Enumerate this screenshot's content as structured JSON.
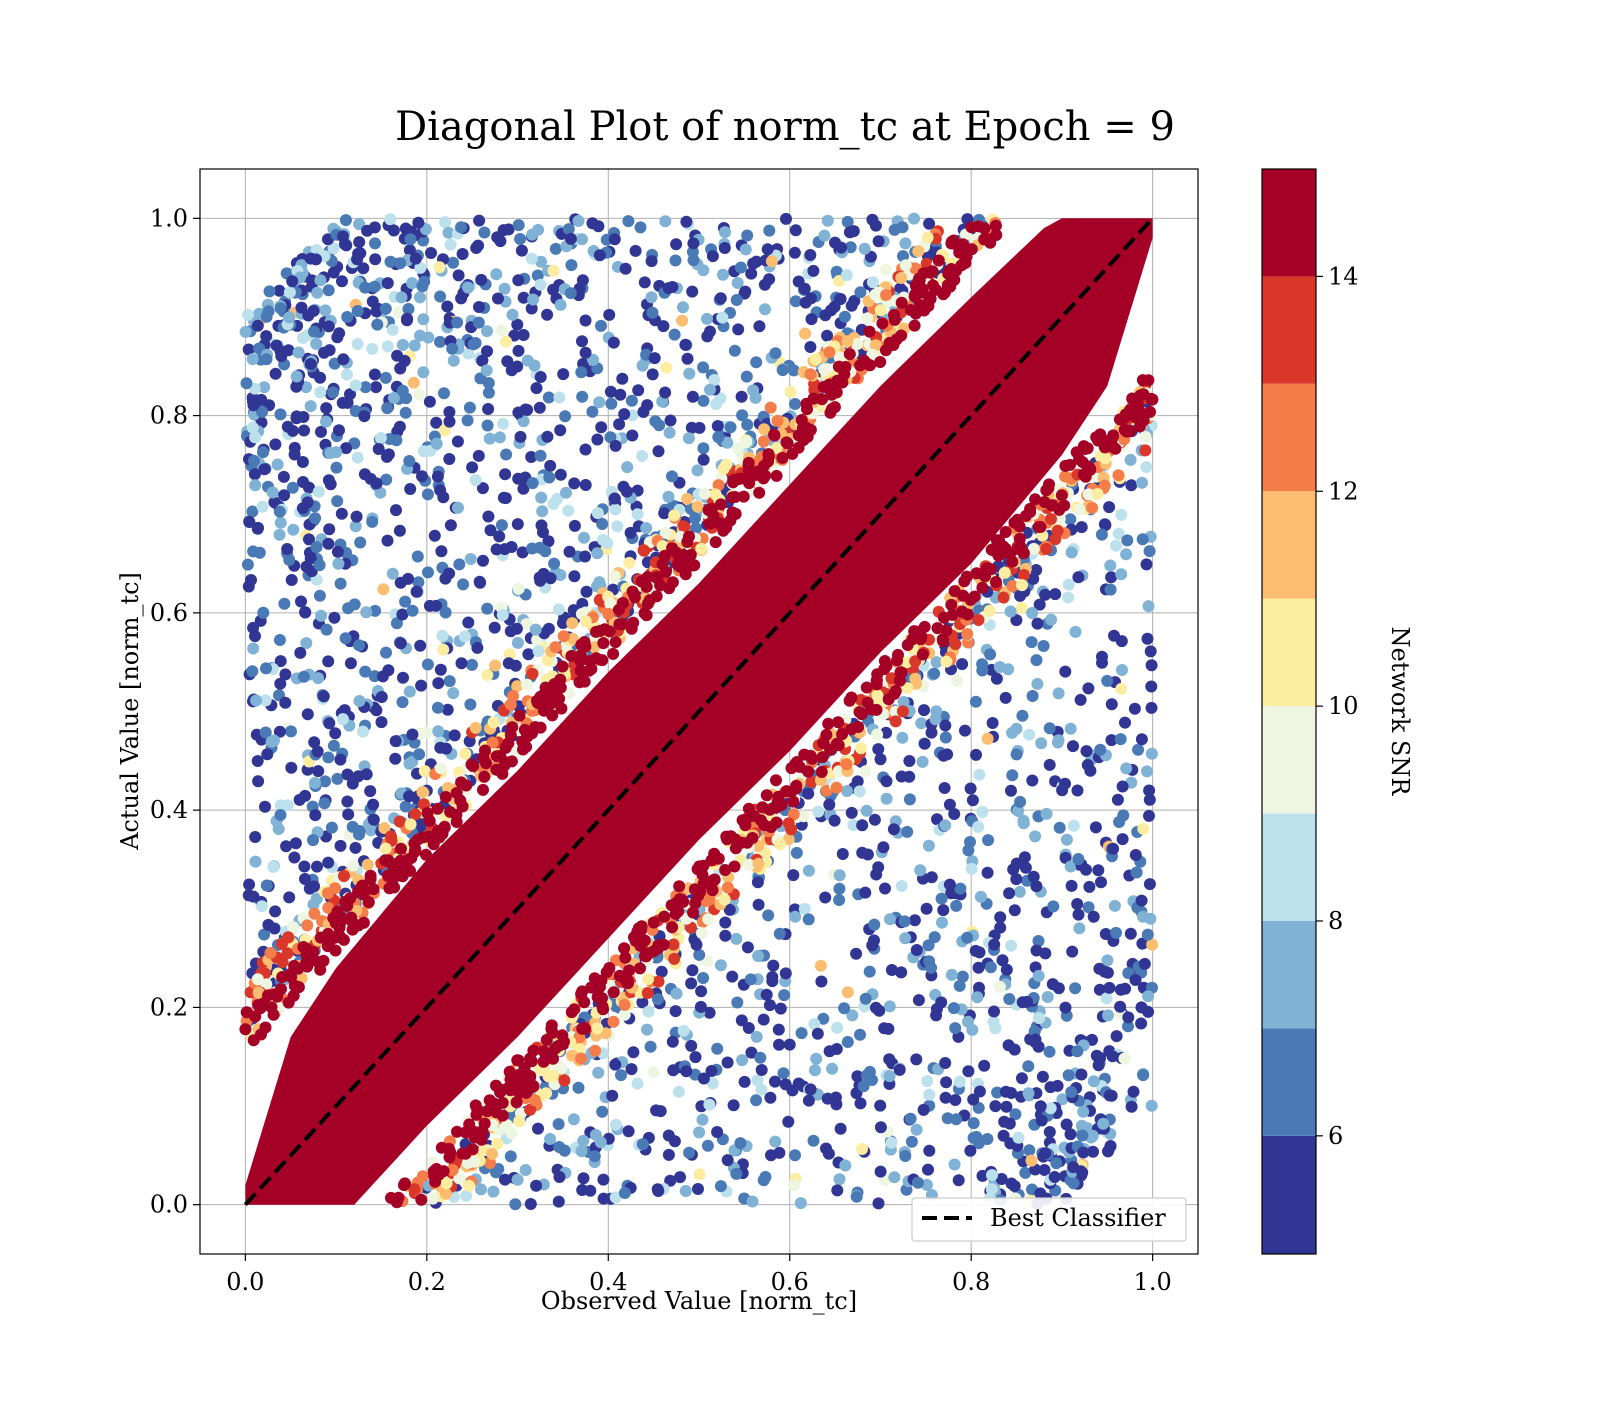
{
  "chart_data": {
    "type": "scatter",
    "title": "Diagonal Plot of norm_tc at Epoch = 9",
    "xlabel": "Observed Value [norm_tc]",
    "ylabel": "Actual Value [norm_tc]",
    "xlim": [
      -0.05,
      1.05
    ],
    "ylim": [
      -0.05,
      1.05
    ],
    "xticks": [
      0.0,
      0.2,
      0.4,
      0.6,
      0.8,
      1.0
    ],
    "yticks": [
      0.0,
      0.2,
      0.4,
      0.6,
      0.8,
      1.0
    ],
    "xtick_labels": [
      "0.0",
      "0.2",
      "0.4",
      "0.6",
      "0.8",
      "1.0"
    ],
    "ytick_labels": [
      "0.0",
      "0.2",
      "0.4",
      "0.6",
      "0.8",
      "1.0"
    ],
    "grid": true,
    "reference_line": {
      "label": "Best Classifier",
      "x": [
        0.0,
        1.0
      ],
      "y": [
        0.0,
        1.0
      ],
      "style": "dashed",
      "color": "#000000"
    },
    "legend": {
      "position": "lower-right",
      "entries": [
        "Best Classifier"
      ]
    },
    "color_scale": {
      "label": "Network SNR",
      "range": [
        4.9,
        15.0
      ],
      "ticks": [
        6,
        8,
        10,
        12,
        14
      ],
      "tick_labels": [
        "6",
        "8",
        "10",
        "12",
        "14"
      ],
      "bands": [
        {
          "from": 4.9,
          "to": 6.0,
          "color": "#313695"
        },
        {
          "from": 6.0,
          "to": 7.0,
          "color": "#4a7ab6"
        },
        {
          "from": 7.0,
          "to": 8.0,
          "color": "#80b2d5"
        },
        {
          "from": 8.0,
          "to": 9.0,
          "color": "#bde1ec"
        },
        {
          "from": 9.0,
          "to": 10.0,
          "color": "#eef6e2"
        },
        {
          "from": 10.0,
          "to": 11.0,
          "color": "#fdeda0"
        },
        {
          "from": 11.0,
          "to": 12.0,
          "color": "#fbbd6f"
        },
        {
          "from": 12.0,
          "to": 13.0,
          "color": "#f47d4a"
        },
        {
          "from": 13.0,
          "to": 14.0,
          "color": "#da372b"
        },
        {
          "from": 14.0,
          "to": 15.0,
          "color": "#a50026"
        }
      ]
    },
    "distribution": {
      "high_snr_band_color": "#a50026",
      "high_snr_band_halfwidth": 0.2,
      "low_snr_colors": [
        "#313695",
        "#4a7ab6",
        "#80b2d5",
        "#bde1ec"
      ],
      "transition_colors": [
        "#eef6e2",
        "#fdeda0",
        "#fbbd6f",
        "#f47d4a",
        "#da372b"
      ]
    }
  }
}
